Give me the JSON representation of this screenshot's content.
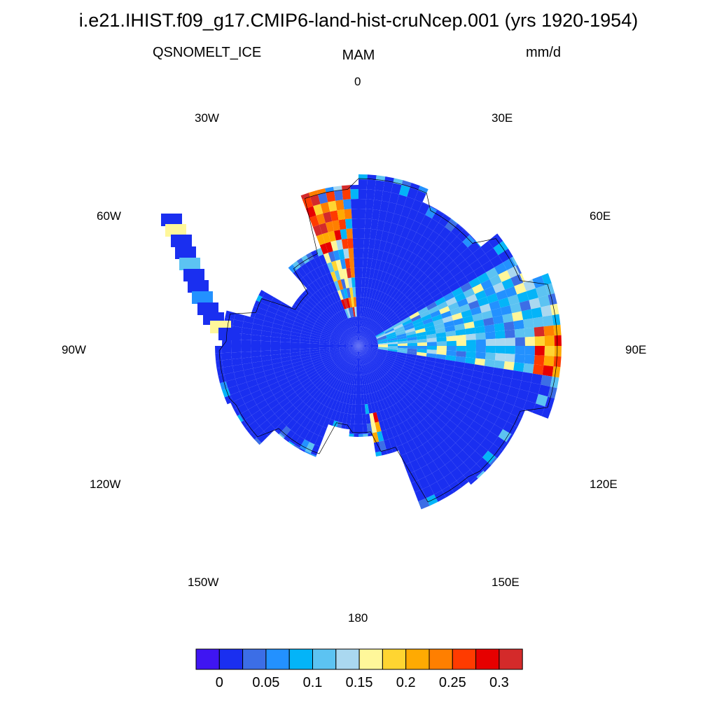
{
  "title": "i.e21.IHIST.f09_g17.CMIP6-land-hist-cruNcep.001 (yrs 1920-1954)",
  "variable": "QSNOMELT_ICE",
  "season": "MAM",
  "units": "mm/d",
  "longitude_labels": {
    "lon_0": "0",
    "lon_30e": "30E",
    "lon_60e": "60E",
    "lon_90e": "90E",
    "lon_120e": "120E",
    "lon_150e": "150E",
    "lon_180": "180",
    "lon_150w": "150W",
    "lon_120w": "120W",
    "lon_90w": "90W",
    "lon_60w": "60W",
    "lon_30w": "30W"
  },
  "colorbar": {
    "colors": [
      "#3f15f2",
      "#1a2ff0",
      "#3c6ee6",
      "#2391ff",
      "#04b4f8",
      "#5cc3f2",
      "#aad8f0",
      "#fff79a",
      "#ffd531",
      "#ffaa02",
      "#ff7f00",
      "#ff3b00",
      "#e60000",
      "#d42a2a"
    ],
    "tick_labels": [
      "0",
      "0.05",
      "0.1",
      "0.15",
      "0.2",
      "0.25",
      "0.3"
    ]
  },
  "chart_data": {
    "type": "heatmap",
    "projection": "south-polar stereographic",
    "region": "Antarctica",
    "variable": "QSNOMELT_ICE",
    "season": "MAM",
    "units": "mm/d",
    "levels": [
      0,
      0.025,
      0.05,
      0.075,
      0.1,
      0.125,
      0.15,
      0.175,
      0.2,
      0.225,
      0.25,
      0.275,
      0.3
    ],
    "regions": [
      {
        "sector": "interior and most of East Antarctica",
        "value_range": [
          0,
          0.025
        ]
      },
      {
        "sector": "0-30W wedge",
        "value_range": [
          0.05,
          0.3
        ]
      },
      {
        "sector": "60E-100E wedge",
        "value_range": [
          0.05,
          0.15
        ]
      },
      {
        "sector": "90E coast",
        "value_range": [
          0.15,
          0.3
        ]
      },
      {
        "sector": "Antarctic Peninsula edge",
        "value_range": [
          0.05,
          0.2
        ]
      },
      {
        "sector": "Ross Sea / 160E coast",
        "value_range": [
          0.05,
          0.3
        ]
      }
    ]
  }
}
